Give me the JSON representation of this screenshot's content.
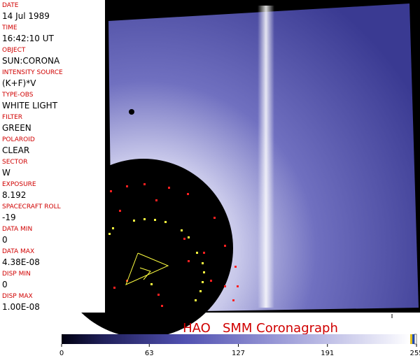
{
  "fields": [
    {
      "label": "DATE",
      "value": "14 Jul 1989"
    },
    {
      "label": "TIME",
      "value": "16:42:10 UT"
    },
    {
      "label": "OBJECT",
      "value": "SUN:CORONA"
    },
    {
      "label": "INTENSITY SOURCE",
      "value": "(K+F)*V"
    },
    {
      "label": "TYPE-OBS",
      "value": "WHITE LIGHT"
    },
    {
      "label": "FILTER",
      "value": "GREEN"
    },
    {
      "label": "POLAROID",
      "value": "CLEAR"
    },
    {
      "label": "SECTOR",
      "value": "W"
    },
    {
      "label": "EXPOSURE",
      "value": "8.192"
    },
    {
      "label": "SPACECRAFT ROLL",
      "value": "-19"
    },
    {
      "label": "DATA MIN",
      "value": "0"
    },
    {
      "label": "DATA MAX",
      "value": "4.38E-08"
    },
    {
      "label": "DISP MIN",
      "value": "0"
    },
    {
      "label": "DISP MAX",
      "value": "1.00E-08"
    }
  ],
  "title": "HAO   SMM Coronagraph",
  "colorbar": {
    "ticks": [
      0,
      63,
      127,
      191,
      255
    ]
  }
}
